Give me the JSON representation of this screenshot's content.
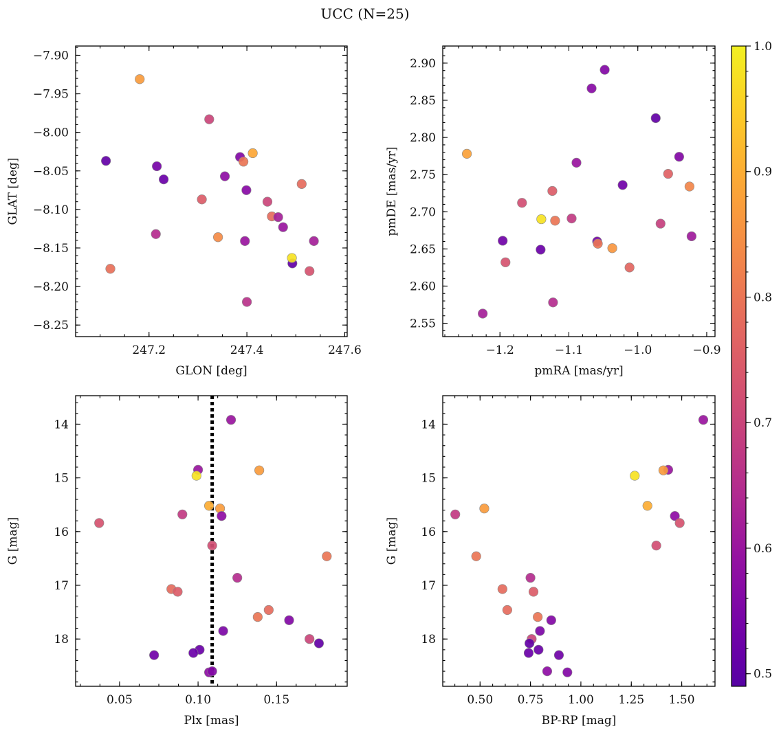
{
  "figure": {
    "title": "UCC (N=25)"
  },
  "colorbar": {
    "vmin": 0.49,
    "vmax": 1.0,
    "ticks": [
      0.5,
      0.6,
      0.7,
      0.8,
      0.9,
      1.0
    ],
    "tick_labels": [
      "0.5",
      "0.6",
      "0.7",
      "0.8",
      "0.9",
      "1.0"
    ],
    "colormap": "plasma"
  },
  "chart_data": [
    {
      "type": "scatter",
      "xlabel": "GLON [deg]",
      "ylabel": "GLAT [deg]",
      "xlim": [
        247.05,
        247.605
      ],
      "ylim": [
        -8.265,
        -7.888
      ],
      "xticks": [
        247.2,
        247.4,
        247.6
      ],
      "xtick_labels": [
        "247.2",
        "247.4",
        "247.6"
      ],
      "yticks": [
        -7.9,
        -7.95,
        -8.0,
        -8.05,
        -8.1,
        -8.15,
        -8.2,
        -8.25
      ],
      "ytick_labels": [
        "−7.90",
        "−7.95",
        "−8.00",
        "−8.05",
        "−8.10",
        "−8.15",
        "−8.20",
        "−8.25"
      ],
      "points": [
        {
          "x": 247.181,
          "y": -7.931,
          "c": 0.87
        },
        {
          "x": 247.323,
          "y": -7.983,
          "c": 0.7
        },
        {
          "x": 247.112,
          "y": -8.037,
          "c": 0.51
        },
        {
          "x": 247.216,
          "y": -8.044,
          "c": 0.54
        },
        {
          "x": 247.23,
          "y": -8.061,
          "c": 0.52
        },
        {
          "x": 247.386,
          "y": -8.032,
          "c": 0.56
        },
        {
          "x": 247.393,
          "y": -8.038,
          "c": 0.8
        },
        {
          "x": 247.412,
          "y": -8.027,
          "c": 0.89
        },
        {
          "x": 247.355,
          "y": -8.057,
          "c": 0.58
        },
        {
          "x": 247.399,
          "y": -8.075,
          "c": 0.57
        },
        {
          "x": 247.512,
          "y": -8.067,
          "c": 0.78
        },
        {
          "x": 247.308,
          "y": -8.087,
          "c": 0.75
        },
        {
          "x": 247.442,
          "y": -8.09,
          "c": 0.7
        },
        {
          "x": 247.451,
          "y": -8.109,
          "c": 0.78
        },
        {
          "x": 247.464,
          "y": -8.11,
          "c": 0.62
        },
        {
          "x": 247.474,
          "y": -8.123,
          "c": 0.6
        },
        {
          "x": 247.214,
          "y": -8.132,
          "c": 0.65
        },
        {
          "x": 247.341,
          "y": -8.136,
          "c": 0.84
        },
        {
          "x": 247.396,
          "y": -8.141,
          "c": 0.6
        },
        {
          "x": 247.537,
          "y": -8.141,
          "c": 0.62
        },
        {
          "x": 247.493,
          "y": -8.17,
          "c": 0.51
        },
        {
          "x": 247.492,
          "y": -8.163,
          "c": 0.98
        },
        {
          "x": 247.121,
          "y": -8.177,
          "c": 0.79
        },
        {
          "x": 247.528,
          "y": -8.18,
          "c": 0.73
        },
        {
          "x": 247.4,
          "y": -8.22,
          "c": 0.66
        }
      ]
    },
    {
      "type": "scatter",
      "xlabel": "pmRA [mas/yr]",
      "ylabel": "pmDE [mas/yr]",
      "xlim": [
        -1.283,
        -0.888
      ],
      "ylim": [
        2.532,
        2.923
      ],
      "xticks": [
        -1.2,
        -1.1,
        -1.0,
        -0.9
      ],
      "xtick_labels": [
        "−1.2",
        "−1.1",
        "−1.0",
        "−0.9"
      ],
      "yticks": [
        2.55,
        2.6,
        2.65,
        2.7,
        2.75,
        2.8,
        2.85,
        2.9
      ],
      "ytick_labels": [
        "2.55",
        "2.60",
        "2.65",
        "2.70",
        "2.75",
        "2.80",
        "2.85",
        "2.90"
      ],
      "points": [
        {
          "x": -1.048,
          "y": 2.891,
          "c": 0.56
        },
        {
          "x": -1.067,
          "y": 2.866,
          "c": 0.57
        },
        {
          "x": -0.974,
          "y": 2.826,
          "c": 0.51
        },
        {
          "x": -1.248,
          "y": 2.778,
          "c": 0.88
        },
        {
          "x": -0.94,
          "y": 2.774,
          "c": 0.56
        },
        {
          "x": -1.089,
          "y": 2.766,
          "c": 0.6
        },
        {
          "x": -0.956,
          "y": 2.751,
          "c": 0.76
        },
        {
          "x": -1.022,
          "y": 2.736,
          "c": 0.53
        },
        {
          "x": -0.925,
          "y": 2.734,
          "c": 0.83
        },
        {
          "x": -1.124,
          "y": 2.728,
          "c": 0.75
        },
        {
          "x": -1.168,
          "y": 2.712,
          "c": 0.72
        },
        {
          "x": -1.14,
          "y": 2.69,
          "c": 0.98
        },
        {
          "x": -1.12,
          "y": 2.688,
          "c": 0.8
        },
        {
          "x": -1.096,
          "y": 2.691,
          "c": 0.68
        },
        {
          "x": -0.967,
          "y": 2.684,
          "c": 0.69
        },
        {
          "x": -1.196,
          "y": 2.661,
          "c": 0.53
        },
        {
          "x": -1.059,
          "y": 2.66,
          "c": 0.54
        },
        {
          "x": -1.058,
          "y": 2.657,
          "c": 0.8
        },
        {
          "x": -0.922,
          "y": 2.667,
          "c": 0.61
        },
        {
          "x": -1.037,
          "y": 2.651,
          "c": 0.86
        },
        {
          "x": -1.141,
          "y": 2.649,
          "c": 0.52
        },
        {
          "x": -1.192,
          "y": 2.632,
          "c": 0.73
        },
        {
          "x": -1.012,
          "y": 2.625,
          "c": 0.77
        },
        {
          "x": -1.123,
          "y": 2.578,
          "c": 0.65
        },
        {
          "x": -1.225,
          "y": 2.563,
          "c": 0.62
        }
      ]
    },
    {
      "type": "scatter",
      "xlabel": "Plx [mas]",
      "ylabel": "G [mag]",
      "xlim": [
        0.022,
        0.195
      ],
      "ylim": [
        18.88,
        13.47
      ],
      "y_inverted": true,
      "vline": {
        "x": 0.109,
        "style": "dotted"
      },
      "xticks": [
        0.05,
        0.1,
        0.15
      ],
      "xtick_labels": [
        "0.05",
        "0.10",
        "0.15"
      ],
      "yticks": [
        14,
        15,
        16,
        17,
        18
      ],
      "ytick_labels": [
        "14",
        "15",
        "16",
        "17",
        "18"
      ],
      "points": [
        {
          "x": 0.121,
          "y": 13.92,
          "c": 0.6
        },
        {
          "x": 0.1,
          "y": 14.85,
          "c": 0.6
        },
        {
          "x": 0.139,
          "y": 14.86,
          "c": 0.87
        },
        {
          "x": 0.099,
          "y": 14.96,
          "c": 0.98
        },
        {
          "x": 0.107,
          "y": 15.52,
          "c": 0.9
        },
        {
          "x": 0.114,
          "y": 15.57,
          "c": 0.87
        },
        {
          "x": 0.09,
          "y": 15.68,
          "c": 0.68
        },
        {
          "x": 0.115,
          "y": 15.71,
          "c": 0.58
        },
        {
          "x": 0.037,
          "y": 15.84,
          "c": 0.73
        },
        {
          "x": 0.109,
          "y": 16.26,
          "c": 0.72
        },
        {
          "x": 0.182,
          "y": 16.46,
          "c": 0.8
        },
        {
          "x": 0.125,
          "y": 16.86,
          "c": 0.65
        },
        {
          "x": 0.083,
          "y": 17.07,
          "c": 0.78
        },
        {
          "x": 0.087,
          "y": 17.12,
          "c": 0.75
        },
        {
          "x": 0.145,
          "y": 17.46,
          "c": 0.78
        },
        {
          "x": 0.138,
          "y": 17.59,
          "c": 0.8
        },
        {
          "x": 0.158,
          "y": 17.65,
          "c": 0.56
        },
        {
          "x": 0.116,
          "y": 17.85,
          "c": 0.55
        },
        {
          "x": 0.171,
          "y": 18.0,
          "c": 0.7
        },
        {
          "x": 0.177,
          "y": 18.08,
          "c": 0.51
        },
        {
          "x": 0.101,
          "y": 18.2,
          "c": 0.52
        },
        {
          "x": 0.097,
          "y": 18.26,
          "c": 0.52
        },
        {
          "x": 0.072,
          "y": 18.3,
          "c": 0.53
        },
        {
          "x": 0.107,
          "y": 18.62,
          "c": 0.58
        },
        {
          "x": 0.109,
          "y": 18.6,
          "c": 0.56
        }
      ]
    },
    {
      "type": "scatter",
      "xlabel": "BP-RP [mag]",
      "ylabel": "G [mag]",
      "xlim": [
        0.315,
        1.665
      ],
      "ylim": [
        18.88,
        13.47
      ],
      "y_inverted": true,
      "xticks": [
        0.5,
        0.75,
        1.0,
        1.25,
        1.5
      ],
      "xtick_labels": [
        "0.50",
        "0.75",
        "1.00",
        "1.25",
        "1.50"
      ],
      "yticks": [
        14,
        15,
        16,
        17,
        18
      ],
      "ytick_labels": [
        "14",
        "15",
        "16",
        "17",
        "18"
      ],
      "points": [
        {
          "x": 1.607,
          "y": 13.92,
          "c": 0.6
        },
        {
          "x": 1.433,
          "y": 14.85,
          "c": 0.6
        },
        {
          "x": 1.409,
          "y": 14.86,
          "c": 0.87
        },
        {
          "x": 1.267,
          "y": 14.96,
          "c": 0.98
        },
        {
          "x": 1.33,
          "y": 15.52,
          "c": 0.9
        },
        {
          "x": 0.521,
          "y": 15.57,
          "c": 0.87
        },
        {
          "x": 0.377,
          "y": 15.68,
          "c": 0.68
        },
        {
          "x": 1.466,
          "y": 15.71,
          "c": 0.58
        },
        {
          "x": 1.49,
          "y": 15.84,
          "c": 0.73
        },
        {
          "x": 1.374,
          "y": 16.26,
          "c": 0.72
        },
        {
          "x": 0.481,
          "y": 16.46,
          "c": 0.8
        },
        {
          "x": 0.75,
          "y": 16.86,
          "c": 0.65
        },
        {
          "x": 0.611,
          "y": 17.07,
          "c": 0.78
        },
        {
          "x": 0.765,
          "y": 17.12,
          "c": 0.75
        },
        {
          "x": 0.635,
          "y": 17.46,
          "c": 0.78
        },
        {
          "x": 0.786,
          "y": 17.59,
          "c": 0.8
        },
        {
          "x": 0.853,
          "y": 17.65,
          "c": 0.56
        },
        {
          "x": 0.797,
          "y": 17.85,
          "c": 0.55
        },
        {
          "x": 0.756,
          "y": 18.0,
          "c": 0.7
        },
        {
          "x": 0.745,
          "y": 18.08,
          "c": 0.51
        },
        {
          "x": 0.79,
          "y": 18.2,
          "c": 0.52
        },
        {
          "x": 0.741,
          "y": 18.26,
          "c": 0.52
        },
        {
          "x": 0.891,
          "y": 18.3,
          "c": 0.53
        },
        {
          "x": 0.833,
          "y": 18.6,
          "c": 0.58
        },
        {
          "x": 0.933,
          "y": 18.62,
          "c": 0.56
        }
      ]
    }
  ]
}
